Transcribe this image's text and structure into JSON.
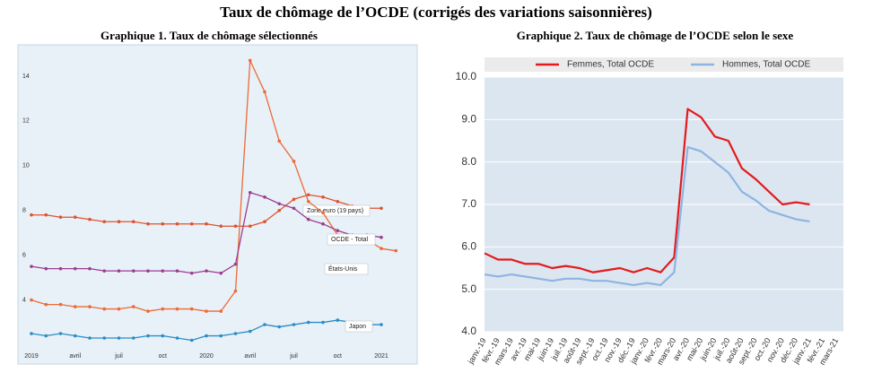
{
  "title": "Taux de chômage de l’OCDE (corrigés des variations saisonnières)",
  "chart_data": [
    {
      "type": "line",
      "title": "Graphique 1. Taux de chômage sélectionnés",
      "categories": [
        "2019",
        null,
        null,
        "avril",
        null,
        null,
        "juil",
        null,
        null,
        "oct",
        null,
        null,
        "2020",
        null,
        null,
        "avril",
        null,
        null,
        "juil",
        null,
        null,
        "oct",
        null,
        null,
        "2021",
        null
      ],
      "ylim": [
        1.3,
        15.4
      ],
      "yticks": [
        4,
        6,
        8,
        10,
        12,
        14
      ],
      "grid": false,
      "markers": true,
      "series": [
        {
          "name": "Zone euro (19 pays)",
          "color": "#e0522d",
          "values": [
            7.8,
            7.8,
            7.7,
            7.7,
            7.6,
            7.5,
            7.5,
            7.5,
            7.4,
            7.4,
            7.4,
            7.4,
            7.4,
            7.3,
            7.3,
            7.3,
            7.5,
            8.0,
            8.5,
            8.7,
            8.6,
            8.4,
            8.2,
            8.1,
            8.1,
            null
          ]
        },
        {
          "name": "États-Unis",
          "color": "#ec6a35",
          "values": [
            4.0,
            3.8,
            3.8,
            3.7,
            3.7,
            3.6,
            3.6,
            3.7,
            3.5,
            3.6,
            3.6,
            3.6,
            3.5,
            3.5,
            4.4,
            14.7,
            13.3,
            11.1,
            10.2,
            8.4,
            7.9,
            6.9,
            6.7,
            6.7,
            6.3,
            6.2
          ]
        },
        {
          "name": "OCDE - Total",
          "color": "#9b3d8f",
          "values": [
            5.5,
            5.4,
            5.4,
            5.4,
            5.4,
            5.3,
            5.3,
            5.3,
            5.3,
            5.3,
            5.3,
            5.2,
            5.3,
            5.2,
            5.6,
            8.8,
            8.6,
            8.3,
            8.1,
            7.6,
            7.4,
            7.1,
            6.9,
            6.9,
            6.8,
            null
          ]
        },
        {
          "name": "Japon",
          "color": "#2b8cc4",
          "values": [
            2.5,
            2.4,
            2.5,
            2.4,
            2.3,
            2.3,
            2.3,
            2.3,
            2.4,
            2.4,
            2.3,
            2.2,
            2.4,
            2.4,
            2.5,
            2.6,
            2.9,
            2.8,
            2.9,
            3.0,
            3.0,
            3.1,
            3.0,
            2.9,
            2.9,
            null
          ]
        }
      ]
    },
    {
      "type": "line",
      "title": "Graphique 2. Taux de chômage de l’OCDE selon le sexe",
      "categories": [
        "janv.-19",
        "févr.-19",
        "mars-19",
        "avr.-19",
        "mai-19",
        "juin-19",
        "juil.-19",
        "août-19",
        "sept.-19",
        "oct.-19",
        "nov.-19",
        "déc.-19",
        "janv.-20",
        "févr.-20",
        "mars-20",
        "avr.-20",
        "mai-20",
        "juin-20",
        "juil.-20",
        "août-20",
        "sept.-20",
        "oct.-20",
        "nov.-20",
        "déc.-20",
        "janv.-21",
        "févr.-21",
        "mars-21"
      ],
      "ylim": [
        4,
        10
      ],
      "yticks": [
        {
          "value": 4,
          "label": "4.0"
        },
        {
          "value": 5,
          "label": "5.0"
        },
        {
          "value": 6,
          "label": "6.0"
        },
        {
          "value": 7,
          "label": "7.0"
        },
        {
          "value": 8,
          "label": "8.0"
        },
        {
          "value": 9,
          "label": "9.0"
        },
        {
          "value": 10,
          "label": "10.0"
        }
      ],
      "grid": true,
      "legend": "top",
      "series": [
        {
          "name": "Femmes, Total OCDE",
          "color": "#e41a1c",
          "values": [
            5.85,
            5.7,
            5.7,
            5.6,
            5.6,
            5.5,
            5.55,
            5.5,
            5.4,
            5.45,
            5.5,
            5.4,
            5.5,
            5.4,
            5.75,
            9.25,
            9.05,
            8.6,
            8.5,
            7.85,
            7.6,
            7.3,
            7.0,
            7.05,
            7.0,
            null,
            null
          ]
        },
        {
          "name": "Hommes, Total OCDE",
          "color": "#8db4e2",
          "values": [
            5.35,
            5.3,
            5.35,
            5.3,
            5.25,
            5.2,
            5.25,
            5.25,
            5.2,
            5.2,
            5.15,
            5.1,
            5.15,
            5.1,
            5.4,
            8.35,
            8.25,
            8.0,
            7.75,
            7.3,
            7.1,
            6.85,
            6.75,
            6.65,
            6.6,
            null,
            null
          ]
        }
      ]
    }
  ]
}
